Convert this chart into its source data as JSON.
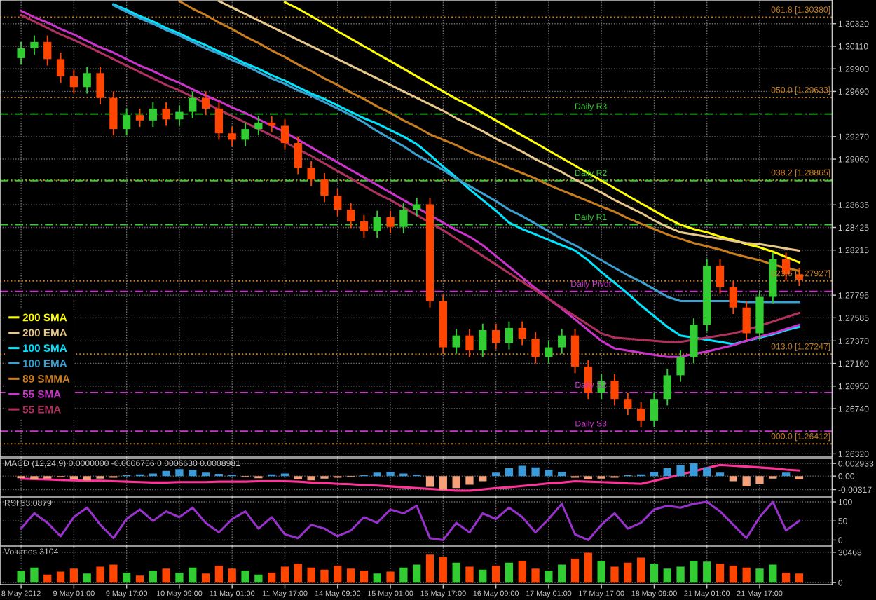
{
  "chart_data": [
    {
      "type": "candlestick",
      "categories": [
        null,
        null,
        null,
        null,
        null,
        null,
        null,
        null,
        null,
        null,
        null,
        null,
        null,
        null,
        null,
        null,
        null,
        null,
        null,
        null,
        null,
        null,
        null,
        null,
        null,
        null,
        null,
        null,
        null,
        null,
        null,
        null,
        null,
        null,
        null,
        null,
        null,
        null,
        null,
        null,
        null,
        null,
        null,
        null,
        null,
        null,
        null,
        null,
        null,
        null,
        null,
        null,
        null,
        null,
        null,
        null,
        null,
        null,
        null,
        null
      ],
      "ohlc": [
        [
          1.3,
          1.3015,
          1.2994,
          1.3009
        ],
        [
          1.3009,
          1.3021,
          1.3003,
          1.3015
        ],
        [
          1.3015,
          1.3021,
          1.2993,
          1.2999
        ],
        [
          1.2999,
          1.3005,
          1.2977,
          1.2983
        ],
        [
          1.2983,
          1.2989,
          1.2967,
          1.2973
        ],
        [
          1.2973,
          1.2992,
          1.2967,
          1.2986
        ],
        [
          1.2986,
          1.2992,
          1.2957,
          1.2963
        ],
        [
          1.2963,
          1.2969,
          1.2928,
          1.2934
        ],
        [
          1.2934,
          1.2953,
          1.2928,
          1.2947
        ],
        [
          1.2947,
          1.2953,
          1.2936,
          1.2942
        ],
        [
          1.2942,
          1.2959,
          1.2936,
          1.2953
        ],
        [
          1.2953,
          1.2959,
          1.2937,
          1.2943
        ],
        [
          1.2943,
          1.2956,
          1.2937,
          1.295
        ],
        [
          1.295,
          1.2969,
          1.2944,
          1.2963
        ],
        [
          1.2963,
          1.2969,
          1.2947,
          1.2953
        ],
        [
          1.2953,
          1.2959,
          1.2924,
          1.293
        ],
        [
          1.293,
          1.2936,
          1.2918,
          1.2924
        ],
        [
          1.2924,
          1.294,
          1.2918,
          1.2934
        ],
        [
          1.2934,
          1.2946,
          1.2928,
          1.294
        ],
        [
          1.294,
          1.2946,
          1.2931,
          1.2937
        ],
        [
          1.2937,
          1.2943,
          1.2915,
          1.2921
        ],
        [
          1.2921,
          1.2927,
          1.2892,
          1.2898
        ],
        [
          1.2898,
          1.2904,
          1.2881,
          1.2887
        ],
        [
          1.2887,
          1.2893,
          1.2866,
          1.2872
        ],
        [
          1.2872,
          1.2878,
          1.2853,
          1.2859
        ],
        [
          1.2859,
          1.2865,
          1.2842,
          1.2848
        ],
        [
          1.2848,
          1.2854,
          1.2833,
          1.2839
        ],
        [
          1.2839,
          1.2858,
          1.2833,
          1.2852
        ],
        [
          1.2852,
          1.2858,
          1.2837,
          1.2843
        ],
        [
          1.2843,
          1.2865,
          1.2837,
          1.2859
        ],
        [
          1.2859,
          1.287,
          1.2853,
          1.2864
        ],
        [
          1.2864,
          1.287,
          1.2768,
          1.2774
        ],
        [
          1.2774,
          1.278,
          1.2725,
          1.2731
        ],
        [
          1.2731,
          1.2748,
          1.2725,
          1.2742
        ],
        [
          1.2742,
          1.2748,
          1.2722,
          1.2728
        ],
        [
          1.2728,
          1.2753,
          1.2722,
          1.2747
        ],
        [
          1.2747,
          1.2753,
          1.2729,
          1.2735
        ],
        [
          1.2735,
          1.2755,
          1.2729,
          1.2749
        ],
        [
          1.2749,
          1.2755,
          1.2733,
          1.2739
        ],
        [
          1.2739,
          1.2745,
          1.2716,
          1.2722
        ],
        [
          1.2722,
          1.2737,
          1.2716,
          1.2731
        ],
        [
          1.2731,
          1.2748,
          1.2725,
          1.2742
        ],
        [
          1.2742,
          1.2748,
          1.2707,
          1.2713
        ],
        [
          1.2713,
          1.2719,
          1.2683,
          1.2689
        ],
        [
          1.2689,
          1.2706,
          1.2683,
          1.27
        ],
        [
          1.27,
          1.2706,
          1.2677,
          1.2683
        ],
        [
          1.2683,
          1.2689,
          1.2668,
          1.2674
        ],
        [
          1.2674,
          1.268,
          1.2657,
          1.2663
        ],
        [
          1.2663,
          1.2689,
          1.2657,
          1.2683
        ],
        [
          1.2683,
          1.2711,
          1.2677,
          1.2705
        ],
        [
          1.2705,
          1.2728,
          1.2699,
          1.2722
        ],
        [
          1.2722,
          1.2758,
          1.2716,
          1.2752
        ],
        [
          1.2752,
          1.2813,
          1.2746,
          1.2807
        ],
        [
          1.2807,
          1.2813,
          1.2781,
          1.2787
        ],
        [
          1.2787,
          1.2793,
          1.2762,
          1.2768
        ],
        [
          1.2768,
          1.2774,
          1.2738,
          1.2744
        ],
        [
          1.2744,
          1.2784,
          1.2738,
          1.2778
        ],
        [
          1.2778,
          1.2819,
          1.2772,
          1.2813
        ],
        [
          1.2813,
          1.2819,
          1.2793,
          1.2799
        ],
        [
          1.2799,
          1.2805,
          1.2788,
          1.2794
        ]
      ],
      "colors": [
        "#32cd32",
        "#32cd32",
        "#ff4500",
        "#ff4500",
        "#ff4500",
        "#32cd32",
        "#ff4500",
        "#ff4500",
        "#32cd32",
        "#ff4500",
        "#32cd32",
        "#ff4500",
        "#32cd32",
        "#32cd32",
        "#ff4500",
        "#ff4500",
        "#ff4500",
        "#32cd32",
        "#32cd32",
        "#ff4500",
        "#ff4500",
        "#ff4500",
        "#ff4500",
        "#ff4500",
        "#ff4500",
        "#ff4500",
        "#ff4500",
        "#32cd32",
        "#ff4500",
        "#32cd32",
        "#32cd32",
        "#ff4500",
        "#ff4500",
        "#32cd32",
        "#ff4500",
        "#32cd32",
        "#ff4500",
        "#32cd32",
        "#ff4500",
        "#ff4500",
        "#32cd32",
        "#32cd32",
        "#ff4500",
        "#ff4500",
        "#32cd32",
        "#ff4500",
        "#ff4500",
        "#ff4500",
        "#32cd32",
        "#32cd32",
        "#32cd32",
        "#32cd32",
        "#32cd32",
        "#ff4500",
        "#ff4500",
        "#ff4500",
        "#32cd32",
        "#32cd32",
        "#ff4500",
        "#ff4500"
      ],
      "series": [
        {
          "type": "line",
          "name": "200 SMA",
          "color": "#ffff00",
          "values": [
            null,
            null,
            null,
            null,
            null,
            null,
            null,
            null,
            null,
            null,
            null,
            null,
            null,
            null,
            null,
            null,
            null,
            null,
            null,
            null,
            1.3052,
            1.3046,
            1.3039,
            1.3032,
            1.3025,
            1.3018,
            1.3011,
            1.3004,
            1.2997,
            1.299,
            1.2983,
            1.2976,
            1.2969,
            1.2962,
            1.2956,
            1.2949,
            1.2942,
            1.2935,
            1.2928,
            1.2921,
            1.2914,
            1.2907,
            1.29,
            1.2893,
            1.2886,
            1.2879,
            1.2872,
            1.2865,
            1.2858,
            1.2851,
            1.2845,
            1.2841,
            1.2838,
            1.2834,
            1.2831,
            1.2827,
            1.2824,
            1.282,
            1.2815,
            1.281
          ]
        },
        {
          "type": "line",
          "name": "200 EMA",
          "color": "#e8c88a",
          "values": [
            null,
            null,
            null,
            null,
            null,
            null,
            null,
            null,
            null,
            null,
            null,
            null,
            null,
            null,
            null,
            1.3053,
            1.3047,
            1.3041,
            1.3035,
            1.3029,
            1.3023,
            1.3017,
            1.3011,
            1.3005,
            1.2999,
            1.2993,
            1.2987,
            1.2981,
            1.2975,
            1.2969,
            1.2963,
            1.2957,
            1.2951,
            1.2944,
            1.2938,
            1.2932,
            1.2925,
            1.2919,
            1.2913,
            1.2906,
            1.29,
            1.2894,
            1.2887,
            1.2881,
            1.2875,
            1.2868,
            1.2862,
            1.2856,
            1.2849,
            1.2843,
            1.2838,
            1.2836,
            1.2834,
            1.2832,
            1.283,
            1.2828,
            1.2827,
            1.2825,
            1.2823,
            1.2821
          ]
        },
        {
          "type": "line",
          "name": "100 SMA",
          "color": "#00e5ff",
          "values": [
            null,
            null,
            null,
            null,
            null,
            null,
            null,
            1.305,
            1.3045,
            1.3039,
            1.3034,
            1.3028,
            1.3023,
            1.3017,
            1.3012,
            1.3006,
            1.3001,
            1.2995,
            1.299,
            1.2984,
            1.2979,
            1.2973,
            1.2967,
            1.2962,
            1.2956,
            1.295,
            1.2944,
            1.2939,
            1.2933,
            1.2927,
            1.292,
            1.291,
            1.2899,
            1.2889,
            1.2878,
            1.2868,
            1.2858,
            1.2847,
            1.2841,
            1.2836,
            1.2831,
            1.2826,
            1.2821,
            1.2812,
            1.2801,
            1.2791,
            1.2781,
            1.277,
            1.276,
            1.275,
            1.2742,
            1.274,
            1.2738,
            1.2736,
            1.2734,
            1.2737,
            1.274,
            1.2743,
            1.2747,
            1.275
          ]
        },
        {
          "type": "line",
          "name": "100 EMA",
          "color": "#3aa0d0",
          "values": [
            null,
            null,
            null,
            null,
            null,
            null,
            null,
            1.3049,
            1.3043,
            1.3037,
            1.3032,
            1.3026,
            1.3021,
            1.3015,
            1.3009,
            1.3004,
            1.2998,
            1.2993,
            1.2987,
            1.2981,
            1.2976,
            1.297,
            1.2965,
            1.2959,
            1.2953,
            1.2947,
            1.294,
            1.2932,
            1.2925,
            1.2918,
            1.291,
            1.2903,
            1.2896,
            1.2888,
            1.2881,
            1.2874,
            1.2867,
            1.2859,
            1.2853,
            1.2846,
            1.2839,
            1.2832,
            1.2826,
            1.2819,
            1.2812,
            1.2805,
            1.2798,
            1.2792,
            1.2785,
            1.2778,
            1.2774,
            1.2774,
            1.2774,
            1.2774,
            1.2774,
            1.2773,
            1.2773,
            1.2773,
            1.2773,
            1.2773
          ]
        },
        {
          "type": "line",
          "name": "89 SMMA",
          "color": "#c87d1e",
          "values": [
            null,
            null,
            null,
            null,
            null,
            null,
            null,
            null,
            null,
            null,
            null,
            null,
            1.3053,
            1.3046,
            1.304,
            1.3033,
            1.3027,
            1.302,
            1.3014,
            1.3007,
            1.3001,
            1.2994,
            1.2988,
            1.2981,
            1.2975,
            1.2968,
            1.2962,
            1.2955,
            1.2949,
            1.2942,
            1.2936,
            1.2929,
            1.2924,
            1.2919,
            1.2913,
            1.2908,
            1.2903,
            1.2898,
            1.2893,
            1.2888,
            1.2882,
            1.2877,
            1.2872,
            1.2867,
            1.2862,
            1.2857,
            1.2851,
            1.2846,
            1.2841,
            1.2836,
            1.2832,
            1.2828,
            1.2825,
            1.2822,
            1.2818,
            1.2815,
            1.2812,
            1.2808,
            1.2805,
            1.2802
          ]
        },
        {
          "type": "line",
          "name": "55 SMA",
          "color": "#cc33cc",
          "values": [
            1.3044,
            1.3038,
            1.3033,
            1.3027,
            1.3022,
            1.3016,
            1.301,
            1.3005,
            1.2999,
            1.2993,
            1.2988,
            1.2982,
            1.2977,
            1.2971,
            1.2965,
            1.296,
            1.2954,
            1.2949,
            1.2943,
            1.2937,
            1.2931,
            1.2924,
            1.2917,
            1.291,
            1.2903,
            1.2896,
            1.2889,
            1.2882,
            1.2875,
            1.2868,
            1.2861,
            1.2854,
            1.2847,
            1.284,
            1.2834,
            1.2826,
            1.2816,
            1.2806,
            1.2796,
            1.2786,
            1.2776,
            1.2767,
            1.2757,
            1.2747,
            1.2737,
            1.273,
            1.2728,
            1.2726,
            1.2724,
            1.2722,
            1.2722,
            1.2725,
            1.2727,
            1.273,
            1.2733,
            1.2737,
            1.2741,
            1.2744,
            1.2748,
            1.2752
          ]
        },
        {
          "type": "line",
          "name": "55 EMA",
          "color": "#b03060",
          "values": [
            1.304,
            1.3034,
            1.3028,
            1.3022,
            1.3017,
            1.3011,
            1.3005,
            1.2999,
            1.2993,
            1.2987,
            1.2981,
            1.2975,
            1.297,
            1.2964,
            1.2958,
            1.2952,
            1.2946,
            1.294,
            1.2934,
            1.2928,
            1.2922,
            1.2915,
            1.2909,
            1.2902,
            1.2895,
            1.2888,
            1.2881,
            1.2874,
            1.2868,
            1.2861,
            1.2854,
            1.2847,
            1.284,
            1.2832,
            1.2824,
            1.2816,
            1.2808,
            1.28,
            1.2792,
            1.2784,
            1.2776,
            1.2768,
            1.276,
            1.2752,
            1.2744,
            1.274,
            1.2739,
            1.2738,
            1.2737,
            1.2736,
            1.2736,
            1.2738,
            1.274,
            1.2742,
            1.2744,
            1.2747,
            1.2751,
            1.2755,
            1.2759,
            1.2763
          ]
        }
      ],
      "ref_lines": [
        {
          "axis": "y",
          "value": 1.3038,
          "label": "061.8 [1.30380]",
          "color": "#c87d1e",
          "line_style": "dotted"
        },
        {
          "axis": "y",
          "value": 1.29633,
          "label": "050.0 [1.29633]",
          "color": "#c87d1e",
          "line_style": "dotted"
        },
        {
          "axis": "y",
          "value": 1.28865,
          "label": "038.2 [1.28865]",
          "color": "#c87d1e",
          "line_style": "dotted"
        },
        {
          "axis": "y",
          "value": 1.27927,
          "label": "023.6 [1.27927]",
          "color": "#c87d1e",
          "line_style": "dotted"
        },
        {
          "axis": "y",
          "value": 1.27247,
          "label": "013.0 [1.27247]",
          "color": "#c87d1e",
          "line_style": "dotted"
        },
        {
          "axis": "y",
          "value": 1.26412,
          "label": "000.0 [1.26412]",
          "color": "#c87d1e",
          "line_style": "dotted"
        },
        {
          "axis": "y",
          "value": 1.2948,
          "label": "Daily R3",
          "color": "#32cd32",
          "line_style": "dashed"
        },
        {
          "axis": "y",
          "value": 1.2886,
          "label": "Daily R2",
          "color": "#32cd32",
          "line_style": "dashed"
        },
        {
          "axis": "y",
          "value": 1.2845,
          "label": "Daily R1",
          "color": "#32cd32",
          "line_style": "dashed"
        },
        {
          "axis": "y",
          "value": 1.2783,
          "label": "Daily Pivot",
          "color": "#cc33cc",
          "line_style": "dashed"
        },
        {
          "axis": "y",
          "value": 1.2689,
          "label": "Daily S2",
          "color": "#cc33cc",
          "line_style": "dashed"
        },
        {
          "axis": "y",
          "value": 1.2653,
          "label": "Daily S3",
          "color": "#cc33cc",
          "line_style": "dashed"
        }
      ],
      "ylim": [
        1.2629,
        1.3054
      ],
      "yticks": [
        {
          "value": 1.3032,
          "label": "1.30320"
        },
        {
          "value": 1.3011,
          "label": "1.30110"
        },
        {
          "value": 1.299,
          "label": "1.29900"
        },
        {
          "value": 1.2969,
          "label": "1.29690"
        },
        {
          "value": 1.2927,
          "label": "1.29270"
        },
        {
          "value": 1.2906,
          "label": "1.29060"
        },
        {
          "value": 1.28635,
          "label": "1.28635"
        },
        {
          "value": 1.28425,
          "label": "1.28425"
        },
        {
          "value": 1.28215,
          "label": "1.28215"
        },
        {
          "value": 1.27795,
          "label": "1.27795"
        },
        {
          "value": 1.27585,
          "label": "1.27585"
        },
        {
          "value": 1.2737,
          "label": "1.27370"
        },
        {
          "value": 1.2716,
          "label": "1.27160"
        },
        {
          "value": 1.2695,
          "label": "1.26950"
        },
        {
          "value": 1.2674,
          "label": "1.26740"
        },
        {
          "value": 1.2632,
          "label": "1.26320"
        }
      ],
      "grid": true,
      "legend": "bottom left",
      "tick_labels": "y"
    },
    {
      "type": "bar",
      "title": "MACD (12,24,9) 0.0000000 -0.0006756 0.0006630 0.0008981",
      "categories": [
        null,
        null,
        null,
        null,
        null,
        null,
        null,
        null,
        null,
        null,
        null,
        null,
        null,
        null,
        null,
        null,
        null,
        null,
        null,
        null,
        null,
        null,
        null,
        null,
        null,
        null,
        null,
        null,
        null,
        null,
        null,
        null,
        null,
        null,
        null,
        null,
        null,
        null,
        null,
        null,
        null,
        null,
        null,
        null,
        null,
        null,
        null,
        null,
        null,
        null,
        null,
        null,
        null,
        null,
        null,
        null,
        null,
        null,
        null,
        null
      ],
      "values": [
        -0.0005,
        -0.0008,
        -0.0006,
        -0.0003,
        -0.0008,
        -0.001,
        -0.0006,
        -0.0004,
        0.0002,
        0.0004,
        0.0006,
        0.0012,
        0.0016,
        0.0014,
        0.0008,
        0.0005,
        0.0003,
        -0.0002,
        -0.0005,
        0.0004,
        0.0006,
        -0.0008,
        -0.001,
        -0.0006,
        -0.0004,
        -0.0002,
        0.0002,
        0.0008,
        0.001,
        0.0006,
        0.0003,
        -0.0025,
        -0.0032,
        -0.0028,
        -0.002,
        -0.0012,
        0.0008,
        0.0018,
        0.0024,
        0.002,
        0.0014,
        0.001,
        -0.0004,
        -0.0008,
        -0.0006,
        -0.0004,
        0.0002,
        0.0004,
        0.001,
        0.0018,
        0.0026,
        0.003,
        0.002,
        0.0008,
        -0.0012,
        -0.0024,
        -0.0018,
        -0.0006,
        0.0008,
        -0.0008
      ],
      "colors": [
        "#f4a07a",
        "#f4a07a",
        "#f4a07a",
        "#f4a07a",
        "#f4a07a",
        "#f4a07a",
        "#f4a07a",
        "#f4a07a",
        "#3a9ad9",
        "#3a9ad9",
        "#3a9ad9",
        "#3a9ad9",
        "#3a9ad9",
        "#3a9ad9",
        "#3a9ad9",
        "#3a9ad9",
        "#3a9ad9",
        "#f4a07a",
        "#f4a07a",
        "#3a9ad9",
        "#3a9ad9",
        "#f4a07a",
        "#f4a07a",
        "#f4a07a",
        "#f4a07a",
        "#f4a07a",
        "#3a9ad9",
        "#3a9ad9",
        "#3a9ad9",
        "#3a9ad9",
        "#3a9ad9",
        "#f4a07a",
        "#f4a07a",
        "#f4a07a",
        "#f4a07a",
        "#f4a07a",
        "#3a9ad9",
        "#3a9ad9",
        "#3a9ad9",
        "#3a9ad9",
        "#3a9ad9",
        "#3a9ad9",
        "#f4a07a",
        "#f4a07a",
        "#f4a07a",
        "#f4a07a",
        "#3a9ad9",
        "#3a9ad9",
        "#3a9ad9",
        "#3a9ad9",
        "#3a9ad9",
        "#3a9ad9",
        "#3a9ad9",
        "#3a9ad9",
        "#f4a07a",
        "#f4a07a",
        "#f4a07a",
        "#f4a07a",
        "#3a9ad9",
        "#f4a07a"
      ],
      "series": [
        {
          "type": "line",
          "color": "#ff3399",
          "values": [
            -0.0006,
            -0.0007,
            -0.0008,
            -0.0009,
            -0.001,
            -0.0011,
            -0.0011,
            -0.0012,
            -0.0013,
            -0.0014,
            -0.0015,
            -0.0015,
            -0.0014,
            -0.0014,
            -0.0014,
            -0.0013,
            -0.0013,
            -0.0013,
            -0.0012,
            -0.0012,
            -0.0012,
            -0.0013,
            -0.0015,
            -0.0016,
            -0.0018,
            -0.0019,
            -0.0021,
            -0.0022,
            -0.0024,
            -0.0026,
            -0.0028,
            -0.003,
            -0.0032,
            -0.0034,
            -0.0034,
            -0.0031,
            -0.0028,
            -0.0026,
            -0.0023,
            -0.002,
            -0.0017,
            -0.0015,
            -0.0012,
            -0.0013,
            -0.0014,
            -0.0015,
            -0.0017,
            -0.0018,
            -0.0011,
            -0.0004,
            0.0004,
            0.0011,
            0.0019,
            0.0026,
            0.0024,
            0.0022,
            0.002,
            0.0018,
            0.0015,
            0.0013
          ]
        }
      ],
      "ylim": [
        -0.0047,
        0.0041
      ],
      "yticks": [
        {
          "value": 0.002933,
          "label": "0.002933"
        },
        {
          "value": 0,
          "label": "0.00"
        },
        {
          "value": -0.00317,
          "label": "-0.00317"
        }
      ],
      "grid": true,
      "tick_labels": "y"
    },
    {
      "type": "line",
      "title": "RSI 53.0879",
      "categories": [
        null,
        null,
        null,
        null,
        null,
        null,
        null,
        null,
        null,
        null,
        null,
        null,
        null,
        null,
        null,
        null,
        null,
        null,
        null,
        null,
        null,
        null,
        null,
        null,
        null,
        null,
        null,
        null,
        null,
        null,
        null,
        null,
        null,
        null,
        null,
        null,
        null,
        null,
        null,
        null,
        null,
        null,
        null,
        null,
        null,
        null,
        null,
        null,
        null,
        null,
        null,
        null,
        null,
        null,
        null,
        null,
        null,
        null,
        null,
        null
      ],
      "series": [
        {
          "color": "#9932cc",
          "values": [
            30,
            70,
            45,
            10,
            60,
            85,
            40,
            5,
            55,
            80,
            50,
            75,
            60,
            85,
            45,
            20,
            55,
            75,
            30,
            60,
            15,
            5,
            40,
            30,
            10,
            25,
            60,
            45,
            80,
            70,
            90,
            5,
            0,
            45,
            20,
            70,
            55,
            85,
            60,
            20,
            55,
            95,
            15,
            0,
            40,
            70,
            30,
            45,
            80,
            90,
            85,
            95,
            100,
            75,
            40,
            5,
            60,
            100,
            25,
            50
          ]
        }
      ],
      "ylim": [
        -14,
        111
      ],
      "yticks": [
        0,
        50,
        100
      ],
      "grid": true,
      "tick_labels": "y"
    },
    {
      "type": "bar",
      "title": "Volumes 3104",
      "categories": [
        "8 May 2012",
        null,
        null,
        null,
        "9 May 01:00",
        null,
        null,
        null,
        "9 May 17:00",
        null,
        null,
        null,
        "10 May 09:00",
        null,
        null,
        null,
        "11 May 01:00",
        null,
        null,
        null,
        "11 May 17:00",
        null,
        null,
        null,
        "14 May 09:00",
        null,
        null,
        null,
        "15 May 01:00",
        null,
        null,
        null,
        "15 May 17:00",
        null,
        null,
        null,
        "16 May 09:00",
        null,
        null,
        null,
        "17 May 01:00",
        null,
        null,
        null,
        "17 May 17:00",
        null,
        null,
        null,
        "18 May 09:00",
        null,
        null,
        null,
        "21 May 01:00",
        null,
        null,
        null,
        "21 May 17:00",
        null,
        null,
        null
      ],
      "values": [
        12000,
        15000,
        8000,
        11000,
        14000,
        9000,
        16000,
        18000,
        10000,
        7000,
        12000,
        14000,
        10000,
        15000,
        9000,
        17000,
        14000,
        12000,
        8000,
        10000,
        16000,
        19000,
        15000,
        13000,
        17000,
        14000,
        12000,
        9000,
        11000,
        15000,
        18000,
        28000,
        26000,
        20000,
        16000,
        13000,
        17000,
        20000,
        22000,
        14000,
        12000,
        18000,
        24000,
        30000,
        22000,
        16000,
        20000,
        25000,
        19000,
        14000,
        16000,
        22000,
        21000,
        19000,
        17000,
        15000,
        14000,
        18000,
        10000,
        9000
      ],
      "colors": [
        "#32cd32",
        "#32cd32",
        "#ff4500",
        "#ff4500",
        "#ff4500",
        "#32cd32",
        "#ff4500",
        "#ff4500",
        "#32cd32",
        "#ff4500",
        "#32cd32",
        "#ff4500",
        "#32cd32",
        "#32cd32",
        "#ff4500",
        "#ff4500",
        "#ff4500",
        "#32cd32",
        "#32cd32",
        "#ff4500",
        "#ff4500",
        "#ff4500",
        "#ff4500",
        "#ff4500",
        "#ff4500",
        "#ff4500",
        "#ff4500",
        "#32cd32",
        "#ff4500",
        "#32cd32",
        "#32cd32",
        "#ff4500",
        "#ff4500",
        "#32cd32",
        "#ff4500",
        "#32cd32",
        "#ff4500",
        "#32cd32",
        "#ff4500",
        "#ff4500",
        "#32cd32",
        "#32cd32",
        "#ff4500",
        "#ff4500",
        "#32cd32",
        "#ff4500",
        "#ff4500",
        "#ff4500",
        "#32cd32",
        "#32cd32",
        "#32cd32",
        "#32cd32",
        "#32cd32",
        "#ff4500",
        "#ff4500",
        "#ff4500",
        "#32cd32",
        "#32cd32",
        "#ff4500",
        "#ff4500"
      ],
      "ylim": [
        -2000,
        36000
      ],
      "yticks": [
        0,
        30468
      ],
      "grid": true
    }
  ]
}
